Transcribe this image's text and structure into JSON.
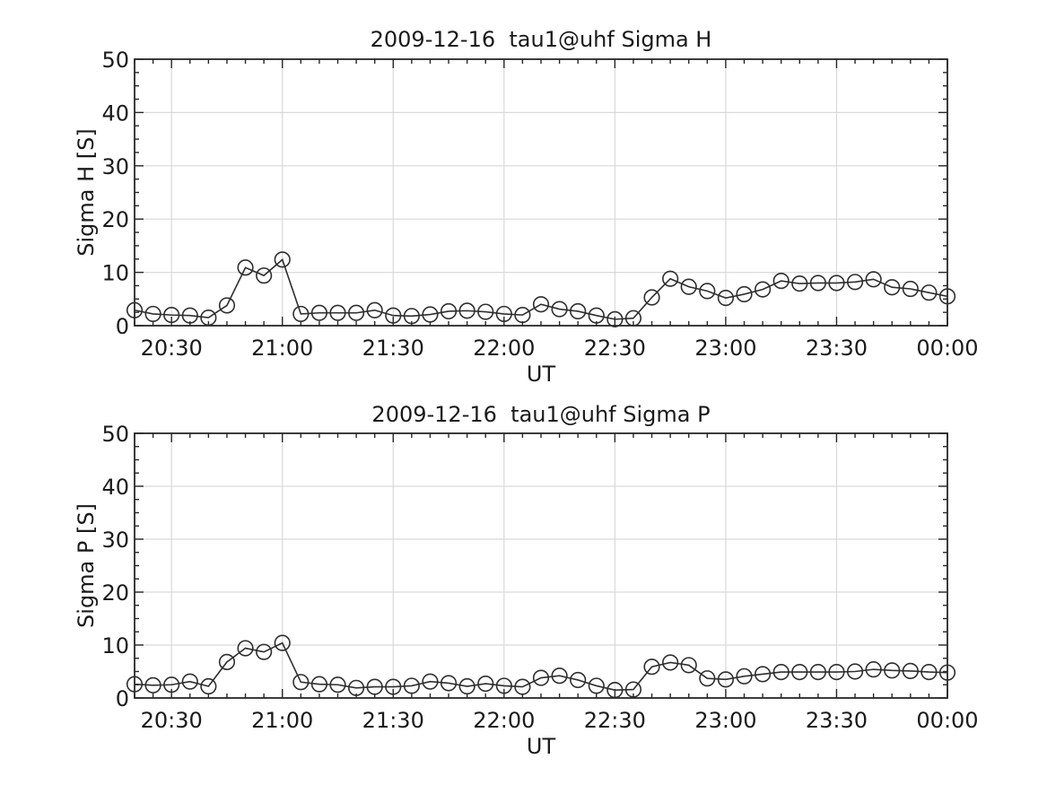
{
  "figure": {
    "background": "#ffffff",
    "line_color": "#2e2e2e",
    "box_color": "#262626",
    "grid_color": "#d9d9d9",
    "text_color": "#1a1a1a"
  },
  "chart_data": [
    {
      "type": "line",
      "title": "2009-12-16  tau1@uhf Sigma H",
      "xlabel": "UT",
      "ylabel": "Sigma H [S]",
      "ylim": [
        0,
        50
      ],
      "yticks": [
        0,
        10,
        20,
        30,
        40,
        50
      ],
      "x_range": [
        "20:20",
        "00:00"
      ],
      "xticks": [
        "20:30",
        "21:00",
        "21:30",
        "22:00",
        "22:30",
        "23:00",
        "23:30",
        "00:00"
      ],
      "grid": true,
      "legend": "none",
      "marker": "open-circle",
      "x": [
        "20:20",
        "20:25",
        "20:30",
        "20:35",
        "20:40",
        "20:45",
        "20:50",
        "20:55",
        "21:00",
        "21:05",
        "21:10",
        "21:15",
        "21:20",
        "21:25",
        "21:30",
        "21:35",
        "21:40",
        "21:45",
        "21:50",
        "21:55",
        "22:00",
        "22:05",
        "22:10",
        "22:15",
        "22:20",
        "22:25",
        "22:30",
        "22:35",
        "22:40",
        "22:45",
        "22:50",
        "22:55",
        "23:00",
        "23:05",
        "23:10",
        "23:15",
        "23:20",
        "23:25",
        "23:30",
        "23:35",
        "23:40",
        "23:45",
        "23:50",
        "23:55",
        "00:00"
      ],
      "y": [
        2.9,
        2.2,
        2.0,
        1.9,
        1.5,
        3.8,
        10.9,
        9.4,
        12.4,
        2.2,
        2.4,
        2.4,
        2.4,
        2.9,
        1.9,
        1.8,
        2.1,
        2.7,
        2.8,
        2.6,
        2.2,
        2.0,
        4.0,
        3.1,
        2.7,
        1.9,
        1.2,
        1.4,
        5.3,
        8.8,
        7.3,
        6.5,
        5.2,
        5.9,
        6.8,
        8.4,
        7.9,
        8.0,
        8.0,
        8.2,
        8.7,
        7.2,
        6.9,
        6.2,
        5.5
      ]
    },
    {
      "type": "line",
      "title": "2009-12-16  tau1@uhf Sigma P",
      "xlabel": "UT",
      "ylabel": "Sigma P [S]",
      "ylim": [
        0,
        50
      ],
      "yticks": [
        0,
        10,
        20,
        30,
        40,
        50
      ],
      "x_range": [
        "20:20",
        "00:00"
      ],
      "xticks": [
        "20:30",
        "21:00",
        "21:30",
        "22:00",
        "22:30",
        "23:00",
        "23:30",
        "00:00"
      ],
      "grid": true,
      "legend": "none",
      "marker": "open-circle",
      "x": [
        "20:20",
        "20:25",
        "20:30",
        "20:35",
        "20:40",
        "20:45",
        "20:50",
        "20:55",
        "21:00",
        "21:05",
        "21:10",
        "21:15",
        "21:20",
        "21:25",
        "21:30",
        "21:35",
        "21:40",
        "21:45",
        "21:50",
        "21:55",
        "22:00",
        "22:05",
        "22:10",
        "22:15",
        "22:20",
        "22:25",
        "22:30",
        "22:35",
        "22:40",
        "22:45",
        "22:50",
        "22:55",
        "23:00",
        "23:05",
        "23:10",
        "23:15",
        "23:20",
        "23:25",
        "23:30",
        "23:35",
        "23:40",
        "23:45",
        "23:50",
        "23:55",
        "00:00"
      ],
      "y": [
        2.6,
        2.4,
        2.5,
        3.1,
        2.2,
        6.8,
        9.4,
        8.7,
        10.4,
        3.0,
        2.6,
        2.5,
        1.9,
        2.1,
        2.1,
        2.3,
        3.1,
        2.8,
        2.2,
        2.7,
        2.3,
        2.1,
        3.8,
        4.2,
        3.4,
        2.3,
        1.5,
        1.6,
        5.9,
        6.7,
        6.2,
        3.7,
        3.5,
        4.1,
        4.5,
        4.9,
        4.9,
        4.9,
        4.9,
        5.0,
        5.4,
        5.2,
        5.1,
        4.9,
        4.8
      ]
    }
  ]
}
